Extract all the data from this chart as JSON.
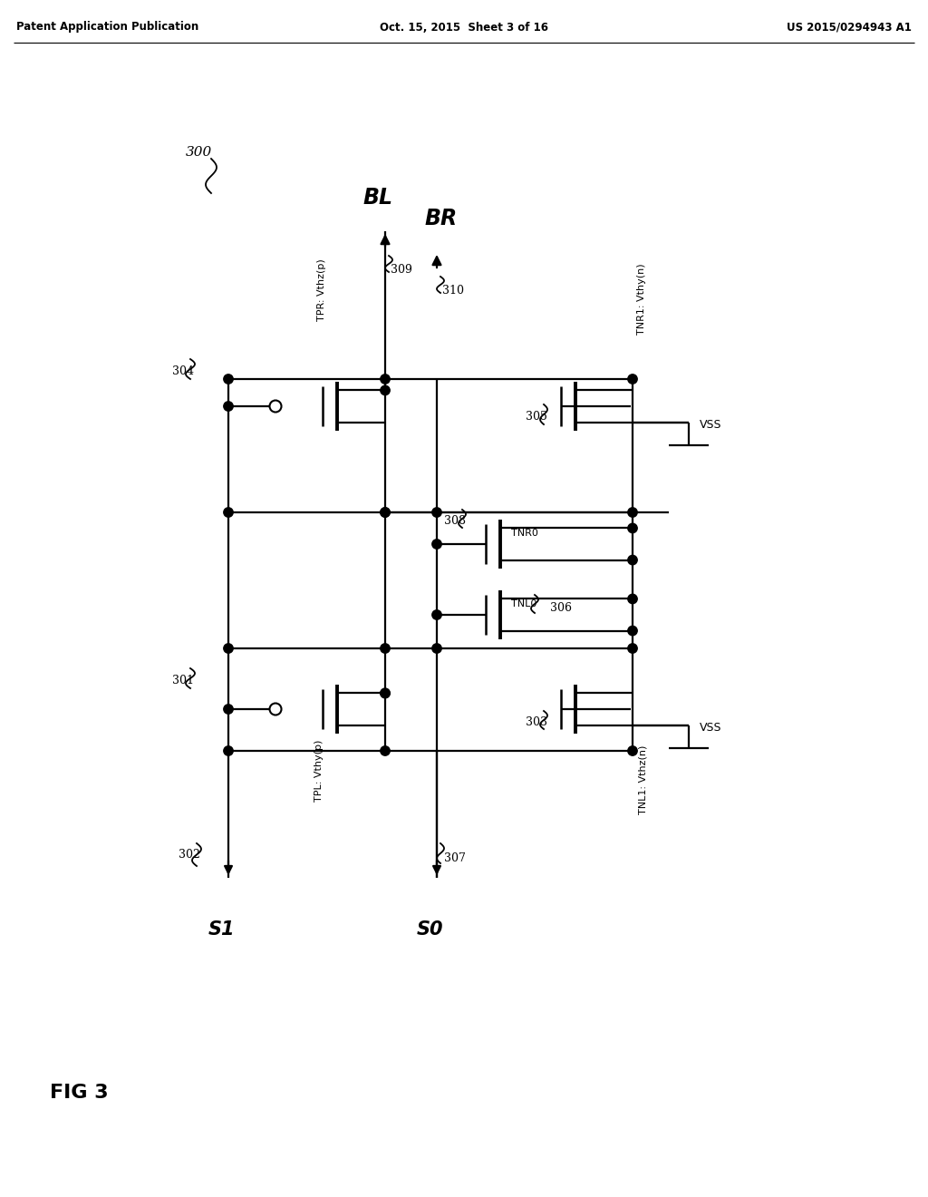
{
  "header_left": "Patent Application Publication",
  "header_center": "Oct. 15, 2015  Sheet 3 of 16",
  "header_right": "US 2015/0294943 A1",
  "fig_label": "FIG 3",
  "bg_color": "#ffffff",
  "title": "300",
  "labels": {
    "BL": "BL",
    "BR": "BR",
    "309": "309",
    "310": "310",
    "304": "304",
    "305": "305",
    "308": "308",
    "306": "306",
    "301": "301",
    "303": "303",
    "302": "302",
    "307": "307",
    "S0": "S0",
    "S1": "S1",
    "VSS": "VSS",
    "TPR": "TPR: Vthz(p)",
    "TNR1": "TNR1: Vthy(n)",
    "TNR0": "TNR0",
    "TNL0": "TNL0",
    "TPL": "TPL: Vthy(p)",
    "TNL1": "TNL1: Vthz(n)"
  }
}
